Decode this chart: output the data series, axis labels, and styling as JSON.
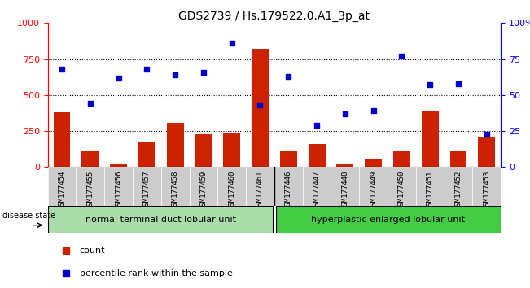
{
  "title": "GDS2739 / Hs.179522.0.A1_3p_at",
  "samples": [
    "GSM177454",
    "GSM177455",
    "GSM177456",
    "GSM177457",
    "GSM177458",
    "GSM177459",
    "GSM177460",
    "GSM177461",
    "GSM177446",
    "GSM177447",
    "GSM177448",
    "GSM177449",
    "GSM177450",
    "GSM177451",
    "GSM177452",
    "GSM177453"
  ],
  "counts": [
    380,
    110,
    20,
    175,
    305,
    230,
    235,
    820,
    110,
    160,
    25,
    55,
    110,
    385,
    115,
    210
  ],
  "percentiles": [
    68,
    44,
    62,
    68,
    64,
    66,
    86,
    43,
    63,
    29,
    37,
    39,
    77,
    57,
    58,
    23
  ],
  "group1_label": "normal terminal duct lobular unit",
  "group2_label": "hyperplastic enlarged lobular unit",
  "group1_count": 8,
  "group2_count": 8,
  "bar_color": "#cc2200",
  "scatter_color": "#0000cc",
  "ylim_left": [
    0,
    1000
  ],
  "ylim_right": [
    0,
    100
  ],
  "yticks_left": [
    0,
    250,
    500,
    750,
    1000
  ],
  "yticks_right": [
    0,
    25,
    50,
    75,
    100
  ],
  "grid_values": [
    250,
    500,
    750
  ],
  "bg_color_group1": "#aaddaa",
  "bg_color_group2": "#44cc44",
  "tick_bg": "#cccccc",
  "disease_label": "disease state",
  "legend_count": "count",
  "legend_percentile": "percentile rank within the sample",
  "fig_width": 6.51,
  "fig_height": 3.54
}
